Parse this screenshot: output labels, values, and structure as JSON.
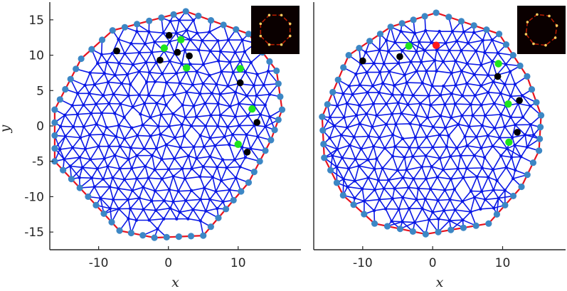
{
  "chart_data": [
    {
      "type": "scatter",
      "description_panel": "left",
      "title": "",
      "xlabel": "x",
      "ylabel": "y",
      "xlim": [
        -17,
        19
      ],
      "ylim": [
        -17.5,
        17.5
      ],
      "xticks": [
        -10,
        0,
        10
      ],
      "yticks": [
        -15,
        -10,
        -5,
        0,
        5,
        10,
        15
      ],
      "hull": [
        [
          -16.3,
          2.3
        ],
        [
          -16.3,
          -5
        ],
        [
          -11.5,
          -10
        ],
        [
          -7,
          -14.8
        ],
        [
          -2,
          -15.8
        ],
        [
          5,
          -15.5
        ],
        [
          11.5,
          -8
        ],
        [
          14.7,
          -2
        ],
        [
          16.3,
          2.3
        ],
        [
          15.5,
          7.8
        ],
        [
          11.5,
          13
        ],
        [
          2.5,
          16.2
        ],
        [
          -8,
          13.5
        ],
        [
          -12.5,
          9.5
        ]
      ],
      "green_points": [
        [
          1.8,
          12.2
        ],
        [
          -0.6,
          11
        ],
        [
          2.6,
          8.2
        ],
        [
          10.3,
          8.1
        ],
        [
          12,
          2.4
        ],
        [
          10,
          -2.6
        ]
      ],
      "black_points": [
        [
          -7.4,
          10.6
        ],
        [
          0.1,
          12.8
        ],
        [
          1.3,
          10.4
        ],
        [
          -1.2,
          9.3
        ],
        [
          3,
          9.9
        ],
        [
          10.3,
          6.1
        ],
        [
          12.7,
          0.5
        ],
        [
          11.3,
          -3.7
        ]
      ],
      "red_points": []
    },
    {
      "type": "scatter",
      "description_panel": "right",
      "title": "",
      "xlabel": "x",
      "ylabel": "",
      "xlim": [
        -17,
        19
      ],
      "ylim": [
        -17.5,
        17.5
      ],
      "xticks": [
        -10,
        0,
        10
      ],
      "yticks": [],
      "hull": [
        [
          -15.8,
          1.3
        ],
        [
          -15.5,
          -4.5
        ],
        [
          -12.8,
          -9.8
        ],
        [
          -8.3,
          -13.8
        ],
        [
          -1,
          -15.3
        ],
        [
          8,
          -13.8
        ],
        [
          12.7,
          -8.6
        ],
        [
          15.2,
          -3.5
        ],
        [
          15.5,
          1.5
        ],
        [
          13.5,
          7
        ],
        [
          9.5,
          13
        ],
        [
          0.5,
          16
        ],
        [
          -6,
          14
        ],
        [
          -12,
          10
        ]
      ],
      "green_points": [
        [
          -3.4,
          11.3
        ],
        [
          9.4,
          8.8
        ],
        [
          10.8,
          3.1
        ],
        [
          10.9,
          -2.3
        ]
      ],
      "black_points": [
        [
          -10,
          9.2
        ],
        [
          -4.7,
          9.8
        ],
        [
          9.3,
          7
        ],
        [
          12.4,
          3.6
        ],
        [
          12.1,
          -0.9
        ]
      ],
      "red_points": [
        [
          0.5,
          11.4
        ]
      ]
    }
  ],
  "colors": {
    "mesh": "#0a18e6",
    "node": "#3c87c5",
    "hull": "#e8141e",
    "green": "#1ee61e",
    "black": "#000000",
    "red": "#ff1a1a",
    "axis": "#262626",
    "inset_bg": "#0a0000",
    "inset_ring": "#d02000",
    "inset_spot": "#ffd060"
  }
}
